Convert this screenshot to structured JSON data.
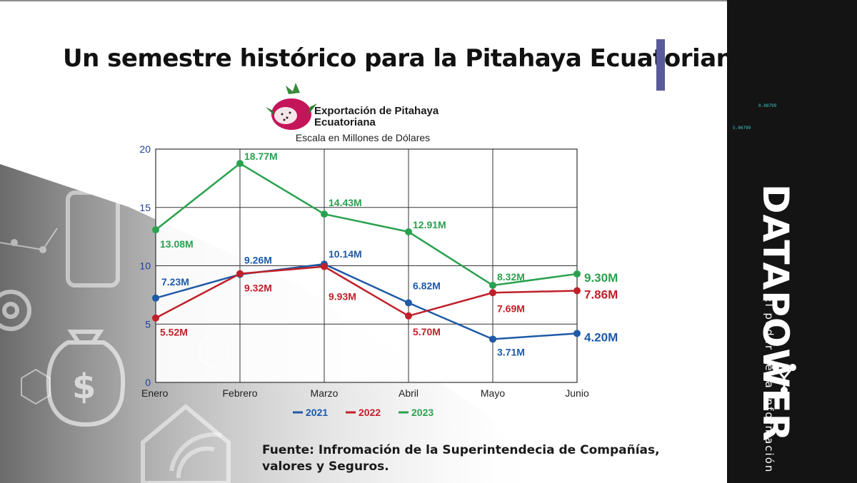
{
  "slide": {
    "title": "Un semestre histórico para la Pitahaya Ecuatoriana.",
    "source_note": "Fuente: Infromación de la Superintendecia de Compañías, valores y Seguros."
  },
  "brand": {
    "name": "DATAPOWER",
    "tagline": "El poder de la información",
    "tiny_numbers": [
      "0.08799",
      "5.06799"
    ]
  },
  "colors": {
    "series_2021": "#1f5aa6",
    "series_2022": "#c0202a",
    "series_2023": "#2aa14e",
    "title_accent": "#5a5a9a",
    "brand_panel": "#141414",
    "y_tick_color": "#1f3f9a"
  },
  "icons": [
    "dragon-fruit-icon"
  ],
  "chart_data": {
    "type": "line",
    "title": "Exportación de Pitahaya Ecuatoriana",
    "subtitle": "Escala en Millones de Dólares",
    "categories": [
      "Enero",
      "Febrero",
      "Marzo",
      "Abril",
      "Mayo",
      "Junio"
    ],
    "ylim": [
      0,
      20
    ],
    "yticks": [
      0,
      5,
      10,
      15,
      20
    ],
    "grid": true,
    "legend_position": "bottom",
    "series": [
      {
        "name": "2021",
        "values": [
          7.23,
          9.26,
          10.14,
          6.82,
          3.71,
          4.2
        ],
        "labels": [
          "7.23M",
          "9.26M",
          "10.14M",
          "6.82M",
          "3.71M",
          "4.20M"
        ]
      },
      {
        "name": "2022",
        "values": [
          5.52,
          9.32,
          9.93,
          5.7,
          7.69,
          7.86
        ],
        "labels": [
          "5.52M",
          "9.32M",
          "9.93M",
          "5.70M",
          "7.69M",
          "7.86M"
        ]
      },
      {
        "name": "2023",
        "values": [
          13.08,
          18.77,
          14.43,
          12.91,
          8.32,
          9.3
        ],
        "labels": [
          "13.08M",
          "18.77M",
          "14.43M",
          "12.91M",
          "8.32M",
          "9.30M"
        ]
      }
    ]
  }
}
